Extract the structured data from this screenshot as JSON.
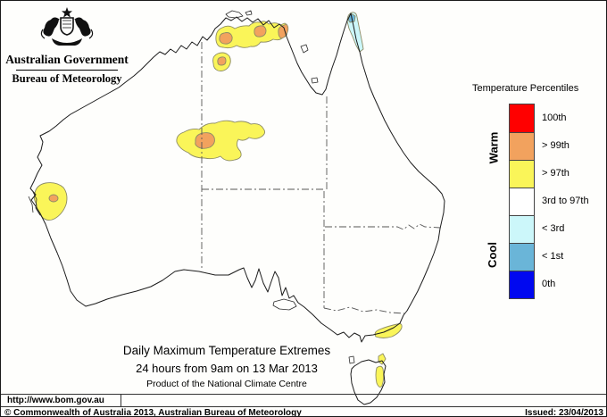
{
  "logo": {
    "line1": "Australian Government",
    "line2": "Bureau of Meteorology"
  },
  "legend": {
    "title": "Temperature Percentiles",
    "warm_label": "Warm",
    "cool_label": "Cool",
    "entries": [
      {
        "key": "p100",
        "label": "100th",
        "color": "#FF0000"
      },
      {
        "key": "p99",
        "label": "> 99th",
        "color": "#F2A25E"
      },
      {
        "key": "p97",
        "label": "> 97th",
        "color": "#FAF559"
      },
      {
        "key": "mid",
        "label": "3rd to 97th",
        "color": "#FFFFFF"
      },
      {
        "key": "lt3",
        "label": "< 3rd",
        "color": "#CCF7FA"
      },
      {
        "key": "lt1",
        "label": "< 1st",
        "color": "#6AB5D8"
      },
      {
        "key": "p0",
        "label": "0th",
        "color": "#0008F0"
      }
    ]
  },
  "map": {
    "title_line1": "Daily Maximum Temperature Extremes",
    "title_line2": "24 hours from 9am on 13 Mar 2013",
    "title_line3": "Product of the National Climate Centre",
    "regions": [
      {
        "name": "top-end-nt",
        "classes": [
          "> 97th",
          "> 99th"
        ]
      },
      {
        "name": "victoria-river-nt",
        "classes": [
          "> 97th",
          "> 99th"
        ]
      },
      {
        "name": "tanami-wa-nt-border",
        "classes": [
          "> 97th",
          "> 99th"
        ]
      },
      {
        "name": "shark-bay-wa",
        "classes": [
          "> 97th",
          "> 99th"
        ]
      },
      {
        "name": "gippsland-vic",
        "classes": [
          "> 97th"
        ]
      },
      {
        "name": "flinders-island-tas",
        "classes": [
          "> 97th"
        ]
      },
      {
        "name": "east-coast-tasmania",
        "classes": [
          "> 97th"
        ]
      },
      {
        "name": "cape-york-qld",
        "classes": [
          "< 3rd",
          "< 1st"
        ]
      }
    ]
  },
  "footer": {
    "url": "http://www.bom.gov.au",
    "copyright": "© Commonwealth of Australia 2013, Australian Bureau of Meteorology",
    "issued": "Issued: 23/04/2013"
  }
}
